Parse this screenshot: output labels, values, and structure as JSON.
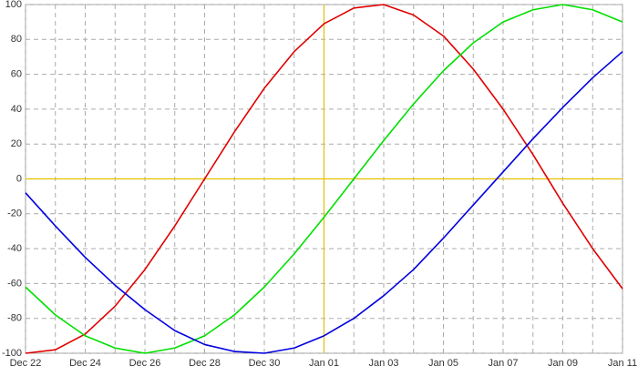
{
  "chart_data": {
    "type": "line",
    "categories": [
      "Dec 22",
      null,
      "Dec 24",
      null,
      "Dec 26",
      null,
      "Dec 28",
      null,
      "Dec 30",
      null,
      "Jan 01",
      null,
      "Jan 03",
      null,
      "Jan 05",
      null,
      "Jan 07",
      null,
      "Jan 09",
      null,
      "Jan 11"
    ],
    "series": [
      {
        "color": "#e00000",
        "values": [
          -100,
          -98,
          -89,
          -73,
          -52,
          -27,
          0,
          27,
          52,
          73,
          89,
          98,
          100,
          94,
          82,
          63,
          40,
          14,
          -14,
          -40,
          -63
        ]
      },
      {
        "color": "#00e000",
        "values": [
          -62,
          -78,
          -90,
          -97,
          -100,
          -97,
          -90,
          -78,
          -62,
          -43,
          -22,
          0,
          22,
          43,
          62,
          78,
          90,
          97,
          100,
          97,
          90
        ]
      },
      {
        "color": "#0000e0",
        "values": [
          -8,
          -27,
          -45,
          -61,
          -75,
          -87,
          -95,
          -99,
          -100,
          -97,
          -90,
          -80,
          -67,
          -52,
          -34,
          -15,
          4,
          23,
          41,
          58,
          73
        ]
      }
    ],
    "ylim": [
      -100,
      100
    ],
    "yticks": [
      -100,
      -80,
      -60,
      -40,
      -20,
      0,
      20,
      40,
      60,
      80,
      100
    ],
    "grid": true,
    "hline": 0,
    "vline": "Jan 01",
    "reference_color": "#e6c000"
  }
}
